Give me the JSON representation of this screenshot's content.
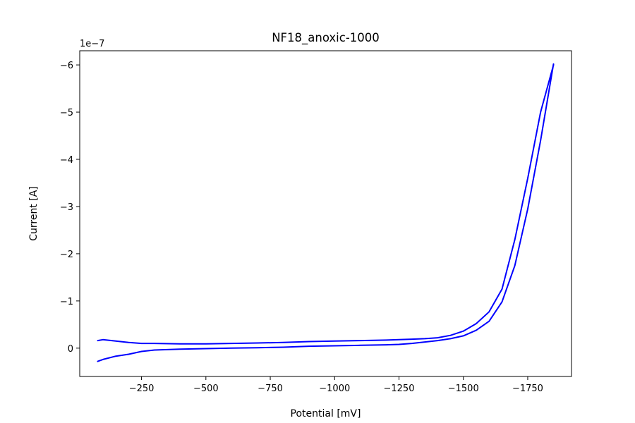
{
  "chart_data": {
    "type": "line",
    "title": "NF18_anoxic-1000",
    "xlabel": "Potential [mV]",
    "ylabel": "Current [A]",
    "y_offset_text": "1e−7",
    "y_scale_exponent": -7,
    "x_inverted": true,
    "y_inverted": true,
    "xlim": [
      -10,
      -1920
    ],
    "ylim": [
      0.6,
      -6.3
    ],
    "x_ticks": [
      {
        "value": -250,
        "label": "−250"
      },
      {
        "value": -500,
        "label": "−500"
      },
      {
        "value": -750,
        "label": "−750"
      },
      {
        "value": -1000,
        "label": "−1000"
      },
      {
        "value": -1250,
        "label": "−1250"
      },
      {
        "value": -1500,
        "label": "−1500"
      },
      {
        "value": -1750,
        "label": "−1750"
      }
    ],
    "y_ticks": [
      {
        "value": 0,
        "label": "0"
      },
      {
        "value": -1,
        "label": "−1"
      },
      {
        "value": -2,
        "label": "−2"
      },
      {
        "value": -3,
        "label": "−3"
      },
      {
        "value": -4,
        "label": "−4"
      },
      {
        "value": -5,
        "label": "−5"
      },
      {
        "value": -6,
        "label": "−6"
      }
    ],
    "grid": false,
    "line_color": "#0000ff",
    "series": [
      {
        "x": [
          -80,
          -100,
          -150,
          -200,
          -250,
          -300,
          -400,
          -500,
          -600,
          -700,
          -800,
          -900,
          -1000,
          -1100,
          -1200,
          -1250,
          -1300,
          -1350,
          -1400,
          -1450,
          -1500,
          -1550,
          -1600,
          -1650,
          -1700,
          -1750,
          -1800,
          -1850,
          -1850,
          -1800,
          -1750,
          -1700,
          -1650,
          -1600,
          -1550,
          -1500,
          -1450,
          -1400,
          -1350,
          -1300,
          -1250,
          -1200,
          -1100,
          -1000,
          -900,
          -800,
          -700,
          -600,
          -500,
          -400,
          -300,
          -250,
          -200,
          -150,
          -100,
          -80
        ],
        "y": [
          0.28,
          0.24,
          0.17,
          0.13,
          0.07,
          0.04,
          0.02,
          0.01,
          0.0,
          -0.01,
          -0.02,
          -0.04,
          -0.05,
          -0.06,
          -0.07,
          -0.08,
          -0.1,
          -0.13,
          -0.16,
          -0.2,
          -0.26,
          -0.38,
          -0.57,
          -0.98,
          -1.75,
          -2.95,
          -4.4,
          -6.02,
          -6.0,
          -5.0,
          -3.6,
          -2.3,
          -1.25,
          -0.77,
          -0.52,
          -0.36,
          -0.27,
          -0.22,
          -0.2,
          -0.19,
          -0.18,
          -0.17,
          -0.16,
          -0.15,
          -0.14,
          -0.12,
          -0.11,
          -0.1,
          -0.09,
          -0.09,
          -0.1,
          -0.1,
          -0.12,
          -0.15,
          -0.18,
          -0.16
        ]
      }
    ]
  }
}
